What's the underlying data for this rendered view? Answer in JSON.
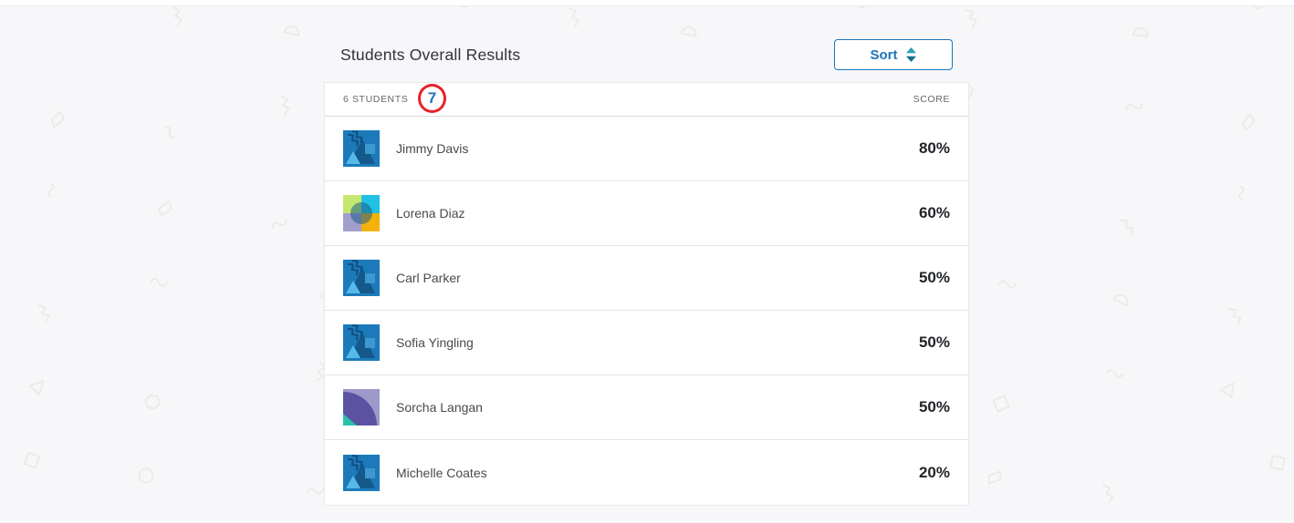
{
  "page": {
    "title_section": {
      "title": "Students Overall Results",
      "sort_button_label": "Sort"
    },
    "list_header": {
      "students_count_label": "6 STUDENTS",
      "score_label": "SCORE"
    },
    "annotation": {
      "step_number": "7"
    },
    "students": [
      {
        "name": "Jimmy Davis",
        "score": "80%",
        "avatar": "blue-shapes"
      },
      {
        "name": "Lorena Diaz",
        "score": "60%",
        "avatar": "color-quadrants"
      },
      {
        "name": "Carl Parker",
        "score": "50%",
        "avatar": "blue-shapes"
      },
      {
        "name": "Sofia Yingling",
        "score": "50%",
        "avatar": "blue-shapes"
      },
      {
        "name": "Sorcha Langan",
        "score": "50%",
        "avatar": "purple-quarter"
      },
      {
        "name": "Michelle Coates",
        "score": "20%",
        "avatar": "blue-shapes"
      }
    ],
    "colors": {
      "accent_blue": "#1B75BC",
      "annotation_red": "#E8212B",
      "sort_icon_teal_top": "#2E9FB4",
      "sort_icon_teal_bottom": "#17708E",
      "page_background": "#F7F7F9",
      "card_background": "#FFFFFF"
    }
  }
}
